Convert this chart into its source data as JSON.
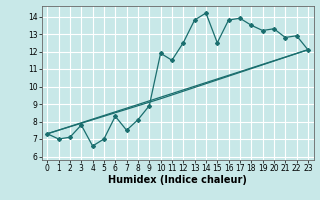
{
  "xlabel": "Humidex (Indice chaleur)",
  "ylabel": "",
  "bg_color": "#c8e8e8",
  "grid_color": "#ffffff",
  "line_color": "#1a6e6e",
  "xlim": [
    -0.5,
    23.5
  ],
  "ylim": [
    5.8,
    14.6
  ],
  "yticks": [
    6,
    7,
    8,
    9,
    10,
    11,
    12,
    13,
    14
  ],
  "xticks": [
    0,
    1,
    2,
    3,
    4,
    5,
    6,
    7,
    8,
    9,
    10,
    11,
    12,
    13,
    14,
    15,
    16,
    17,
    18,
    19,
    20,
    21,
    22,
    23
  ],
  "series1_x": [
    0,
    1,
    2,
    3,
    4,
    5,
    6,
    7,
    8,
    9,
    10,
    11,
    12,
    13,
    14,
    15,
    16,
    17,
    18,
    19,
    20,
    21,
    22,
    23
  ],
  "series1_y": [
    7.3,
    7.0,
    7.1,
    7.8,
    6.6,
    7.0,
    8.3,
    7.5,
    8.1,
    8.9,
    11.9,
    11.5,
    12.5,
    13.8,
    14.2,
    12.5,
    13.8,
    13.9,
    13.5,
    13.2,
    13.3,
    12.8,
    12.9,
    12.1
  ],
  "series2_x": [
    0,
    23
  ],
  "series2_y": [
    7.3,
    12.1
  ],
  "series3_x": [
    0,
    10,
    23
  ],
  "series3_y": [
    7.3,
    9.3,
    12.1
  ],
  "tick_fontsize": 5.5,
  "xlabel_fontsize": 7
}
